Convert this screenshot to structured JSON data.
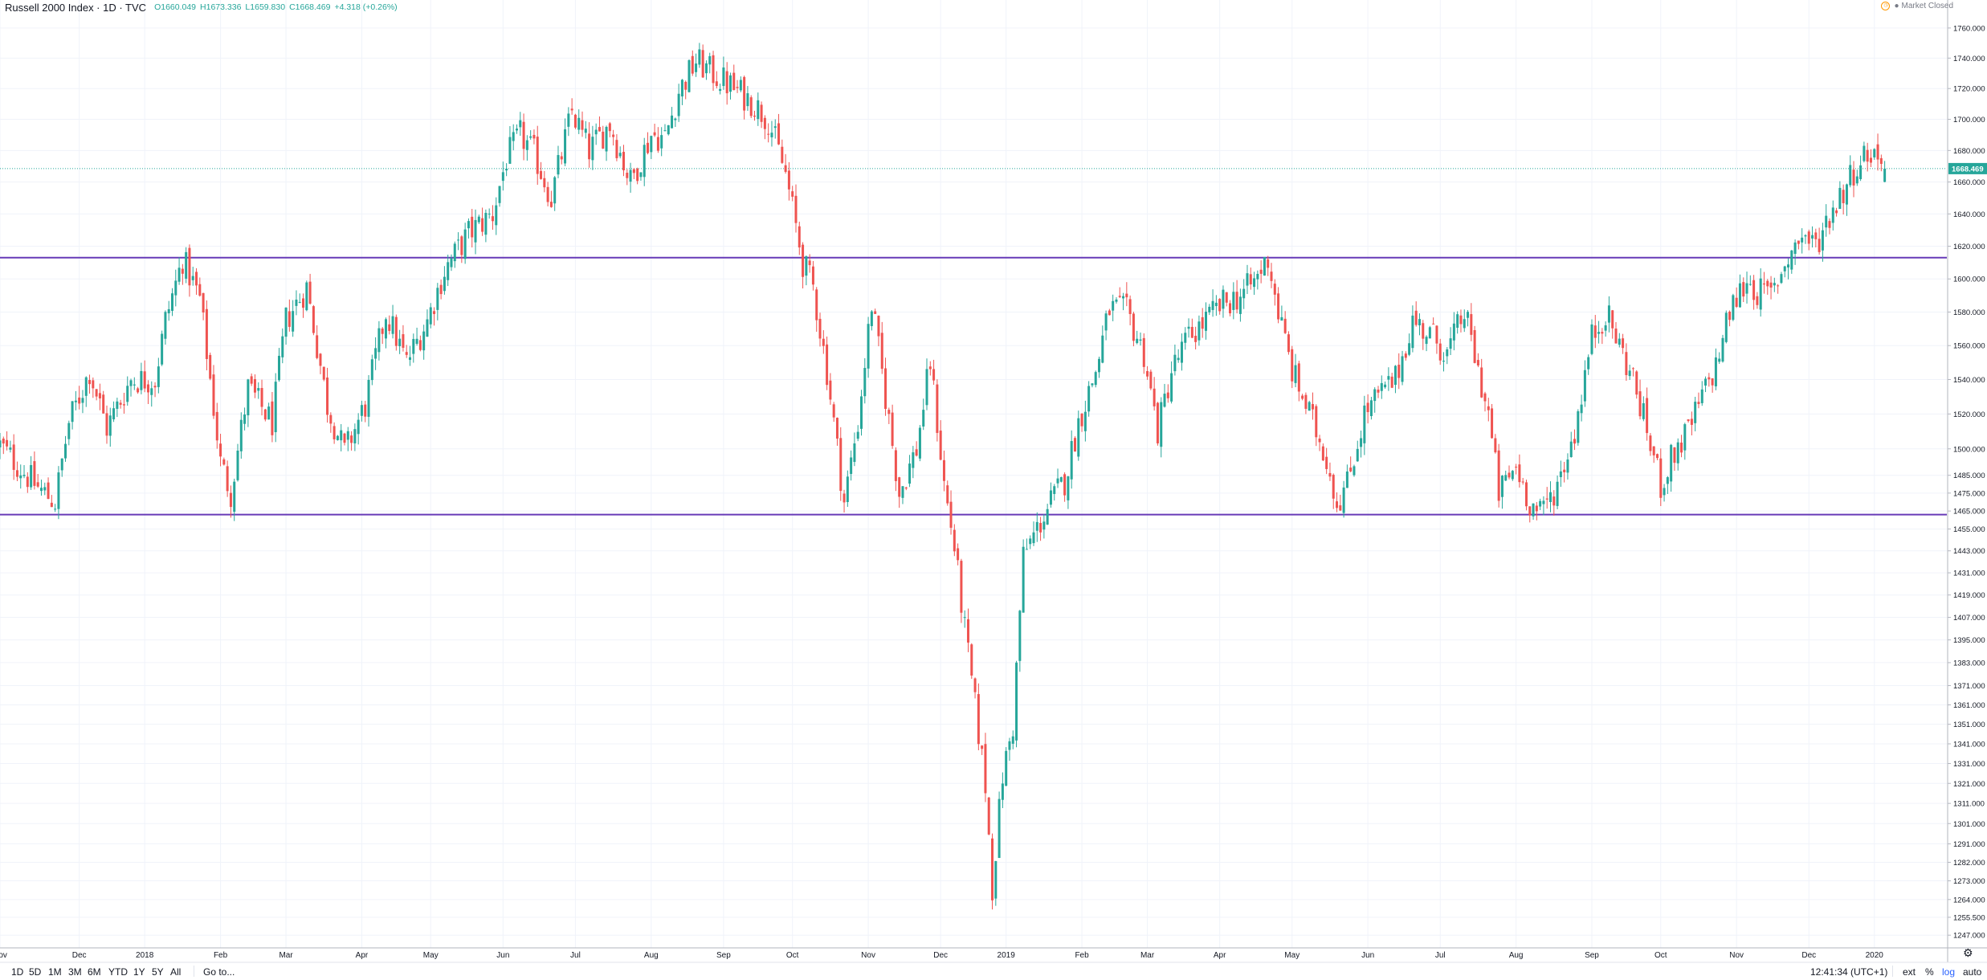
{
  "header": {
    "title": "Russell 2000 Index · 1D · TVC",
    "open": "O1660.049",
    "high": "H1673.336",
    "low": "L1659.830",
    "close": "C1668.469",
    "change": "+4.318 (+0.26%)",
    "market_status": "Market Closed"
  },
  "colors": {
    "up": "#26a69a",
    "down": "#ef5350",
    "level_line": "#673ab7",
    "price_line": "#26a69a",
    "grid": "#f0f3fa"
  },
  "chart_data": {
    "type": "candlestick",
    "y_scale": "log",
    "ylim": [
      1241,
      1768
    ],
    "last_price": 1668.469,
    "last_price_label": "1668.469",
    "horizontal_levels": [
      1613,
      1463
    ],
    "yticks": [
      1760,
      1740,
      1720,
      1700,
      1680,
      1660,
      1640,
      1620,
      1600,
      1580,
      1560,
      1540,
      1520,
      1500,
      1485,
      1475,
      1465,
      1455,
      1443,
      1431,
      1419,
      1407,
      1395,
      1383,
      1371,
      1361,
      1351,
      1341,
      1331,
      1321,
      1311,
      1301,
      1291,
      1282,
      1273,
      1264,
      1255.5,
      1247
    ],
    "ytick_labels": [
      "1760.000",
      "1740.000",
      "1720.000",
      "1700.000",
      "1680.000",
      "1660.000",
      "1640.000",
      "1620.000",
      "1600.000",
      "1580.000",
      "1560.000",
      "1540.000",
      "1520.000",
      "1500.000",
      "1485.000",
      "1475.000",
      "1465.000",
      "1455.000",
      "1443.000",
      "1431.000",
      "1419.000",
      "1407.000",
      "1395.000",
      "1383.000",
      "1371.000",
      "1361.000",
      "1351.000",
      "1341.000",
      "1331.000",
      "1321.000",
      "1311.000",
      "1301.000",
      "1291.000",
      "1282.000",
      "1273.000",
      "1264.000",
      "1255.500",
      "1247.000"
    ],
    "xticks": [
      "Nov",
      "Dec",
      "2018",
      "Feb",
      "Mar",
      "Apr",
      "May",
      "Jun",
      "Jul",
      "Aug",
      "Sep",
      "Oct",
      "Nov",
      "Dec",
      "2019",
      "Feb",
      "Mar",
      "Apr",
      "May",
      "Jun",
      "Jul",
      "Aug",
      "Sep",
      "Oct",
      "Nov",
      "Dec",
      "2020"
    ],
    "xtick_index": [
      0,
      23,
      42,
      64,
      83,
      105,
      125,
      146,
      167,
      189,
      210,
      230,
      252,
      273,
      292,
      314,
      333,
      354,
      375,
      397,
      418,
      440,
      462,
      482,
      504,
      525,
      544
    ],
    "x_first": 0,
    "x_last": 564,
    "path_anchors": [
      [
        0,
        1502
      ],
      [
        11,
        1478
      ],
      [
        16,
        1470
      ],
      [
        20,
        1515
      ],
      [
        26,
        1545
      ],
      [
        31,
        1512
      ],
      [
        38,
        1540
      ],
      [
        45,
        1540
      ],
      [
        48,
        1575
      ],
      [
        53,
        1612
      ],
      [
        58,
        1588
      ],
      [
        64,
        1492
      ],
      [
        67,
        1475
      ],
      [
        72,
        1535
      ],
      [
        79,
        1515
      ],
      [
        83,
        1575
      ],
      [
        89,
        1595
      ],
      [
        95,
        1525
      ],
      [
        100,
        1498
      ],
      [
        106,
        1525
      ],
      [
        112,
        1580
      ],
      [
        118,
        1550
      ],
      [
        124,
        1575
      ],
      [
        129,
        1605
      ],
      [
        136,
        1628
      ],
      [
        143,
        1640
      ],
      [
        147,
        1675
      ],
      [
        151,
        1690
      ],
      [
        155,
        1678
      ],
      [
        160,
        1650
      ],
      [
        166,
        1705
      ],
      [
        171,
        1680
      ],
      [
        177,
        1697
      ],
      [
        183,
        1660
      ],
      [
        189,
        1690
      ],
      [
        193,
        1688
      ],
      [
        197,
        1718
      ],
      [
        202,
        1738
      ],
      [
        208,
        1728
      ],
      [
        213,
        1720
      ],
      [
        218,
        1712
      ],
      [
        223,
        1700
      ],
      [
        228,
        1665
      ],
      [
        233,
        1610
      ],
      [
        236,
        1595
      ],
      [
        240,
        1545
      ],
      [
        245,
        1470
      ],
      [
        249,
        1515
      ],
      [
        253,
        1585
      ],
      [
        257,
        1530
      ],
      [
        261,
        1475
      ],
      [
        266,
        1500
      ],
      [
        270,
        1550
      ],
      [
        274,
        1480
      ],
      [
        277,
        1445
      ],
      [
        280,
        1400
      ],
      [
        283,
        1360
      ],
      [
        286,
        1320
      ],
      [
        288,
        1270
      ],
      [
        291,
        1325
      ],
      [
        294,
        1350
      ],
      [
        297,
        1440
      ],
      [
        301,
        1455
      ],
      [
        305,
        1470
      ],
      [
        309,
        1482
      ],
      [
        313,
        1515
      ],
      [
        318,
        1545
      ],
      [
        322,
        1582
      ],
      [
        327,
        1580
      ],
      [
        332,
        1555
      ],
      [
        336,
        1510
      ],
      [
        340,
        1545
      ],
      [
        345,
        1565
      ],
      [
        350,
        1575
      ],
      [
        355,
        1585
      ],
      [
        360,
        1590
      ],
      [
        364,
        1598
      ],
      [
        368,
        1613
      ],
      [
        371,
        1580
      ],
      [
        375,
        1545
      ],
      [
        379,
        1525
      ],
      [
        385,
        1495
      ],
      [
        388,
        1470
      ],
      [
        391,
        1480
      ],
      [
        396,
        1520
      ],
      [
        400,
        1530
      ],
      [
        405,
        1540
      ],
      [
        410,
        1575
      ],
      [
        416,
        1565
      ],
      [
        420,
        1555
      ],
      [
        425,
        1580
      ],
      [
        429,
        1545
      ],
      [
        432,
        1520
      ],
      [
        435,
        1475
      ],
      [
        440,
        1490
      ],
      [
        444,
        1470
      ],
      [
        447,
        1463
      ],
      [
        452,
        1480
      ],
      [
        457,
        1510
      ],
      [
        462,
        1565
      ],
      [
        466,
        1580
      ],
      [
        470,
        1560
      ],
      [
        474,
        1540
      ],
      [
        478,
        1510
      ],
      [
        482,
        1480
      ],
      [
        486,
        1498
      ],
      [
        490,
        1510
      ],
      [
        494,
        1530
      ],
      [
        498,
        1548
      ],
      [
        502,
        1580
      ],
      [
        507,
        1600
      ],
      [
        510,
        1592
      ],
      [
        514,
        1590
      ],
      [
        518,
        1610
      ],
      [
        523,
        1627
      ],
      [
        527,
        1620
      ],
      [
        531,
        1640
      ],
      [
        535,
        1655
      ],
      [
        539,
        1672
      ],
      [
        543,
        1680
      ],
      [
        545,
        1675
      ],
      [
        547,
        1668
      ]
    ],
    "last_candle": {
      "o": 1660.049,
      "h": 1673.336,
      "l": 1659.83,
      "c": 1668.469
    }
  },
  "toolbar": {
    "periods": [
      "1D",
      "5D",
      "1M",
      "3M",
      "6M",
      "YTD",
      "1Y",
      "5Y",
      "All"
    ],
    "goto": "Go to...",
    "time": "12:41:34 (UTC+1)",
    "ext": "ext",
    "percent": "%",
    "log": "log",
    "auto": "auto"
  },
  "icons": {
    "settings": "gear-icon",
    "market_status": "clock-icon"
  }
}
